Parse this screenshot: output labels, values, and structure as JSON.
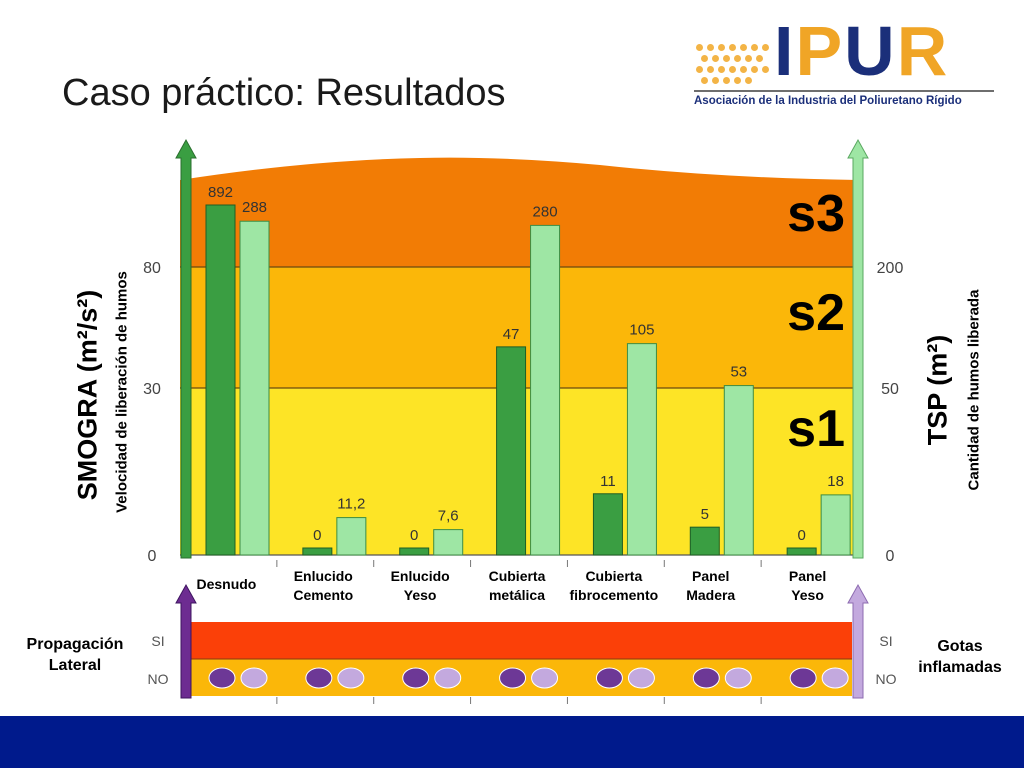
{
  "slide": {
    "title": "Caso práctico: Resultados"
  },
  "logo": {
    "text": "IPUR",
    "tagline": "Asociación de la Industria del Poliuretano Rígido"
  },
  "colors": {
    "s3": "#f27c05",
    "s2": "#fbb709",
    "s1": "#fde426",
    "smogra_bar": "#3a9e42",
    "tsp_bar": "#9ee6a4",
    "lateral_arrow": "#6d2c91",
    "gotas_arrow": "#c3a9de",
    "row_si": "#fb4008",
    "row_no": "#fbb709",
    "dot_lateral": "#6d3896",
    "dot_gotas": "#c3a9de",
    "footer": "#001a8c"
  },
  "chart_data": {
    "type": "bar",
    "categories": [
      "Desnudo",
      "Enlucido\nCemento",
      "Enlucido\nYeso",
      "Cubierta\nmetálica",
      "Cubierta\nfibrocemento",
      "Panel\nMadera",
      "Panel\nYeso"
    ],
    "left_axis": {
      "label": "SMOGRA (m²/s²)",
      "sublabel": "Velocidad de liberación de humos",
      "ticks": [
        0,
        30,
        80
      ]
    },
    "right_axis": {
      "label": "TSP (m²)",
      "sublabel": "Cantidad de humos liberada",
      "ticks": [
        0,
        50,
        200
      ]
    },
    "bands": [
      "s1",
      "s2",
      "s3"
    ],
    "series": [
      {
        "name": "SMOGRA",
        "values": [
          892,
          0,
          0,
          47,
          11,
          5,
          0
        ],
        "labels": [
          "892",
          "0",
          "0",
          "47",
          "11",
          "5",
          "0"
        ]
      },
      {
        "name": "TSP",
        "values": [
          288,
          11.2,
          7.6,
          280,
          105,
          53,
          18
        ],
        "labels": [
          "288",
          "11,2",
          "7,6",
          "280",
          "105",
          "53",
          "18"
        ]
      }
    ],
    "lower_panel": {
      "left_label": "Propagación\nLateral",
      "right_label": "Gotas\ninflamadas",
      "rows": [
        "SI",
        "NO"
      ],
      "propagacion_lateral": [
        "NO",
        "NO",
        "NO",
        "NO",
        "NO",
        "NO",
        "NO"
      ],
      "gotas_inflamadas": [
        "NO",
        "NO",
        "NO",
        "NO",
        "NO",
        "NO",
        "NO"
      ]
    }
  }
}
